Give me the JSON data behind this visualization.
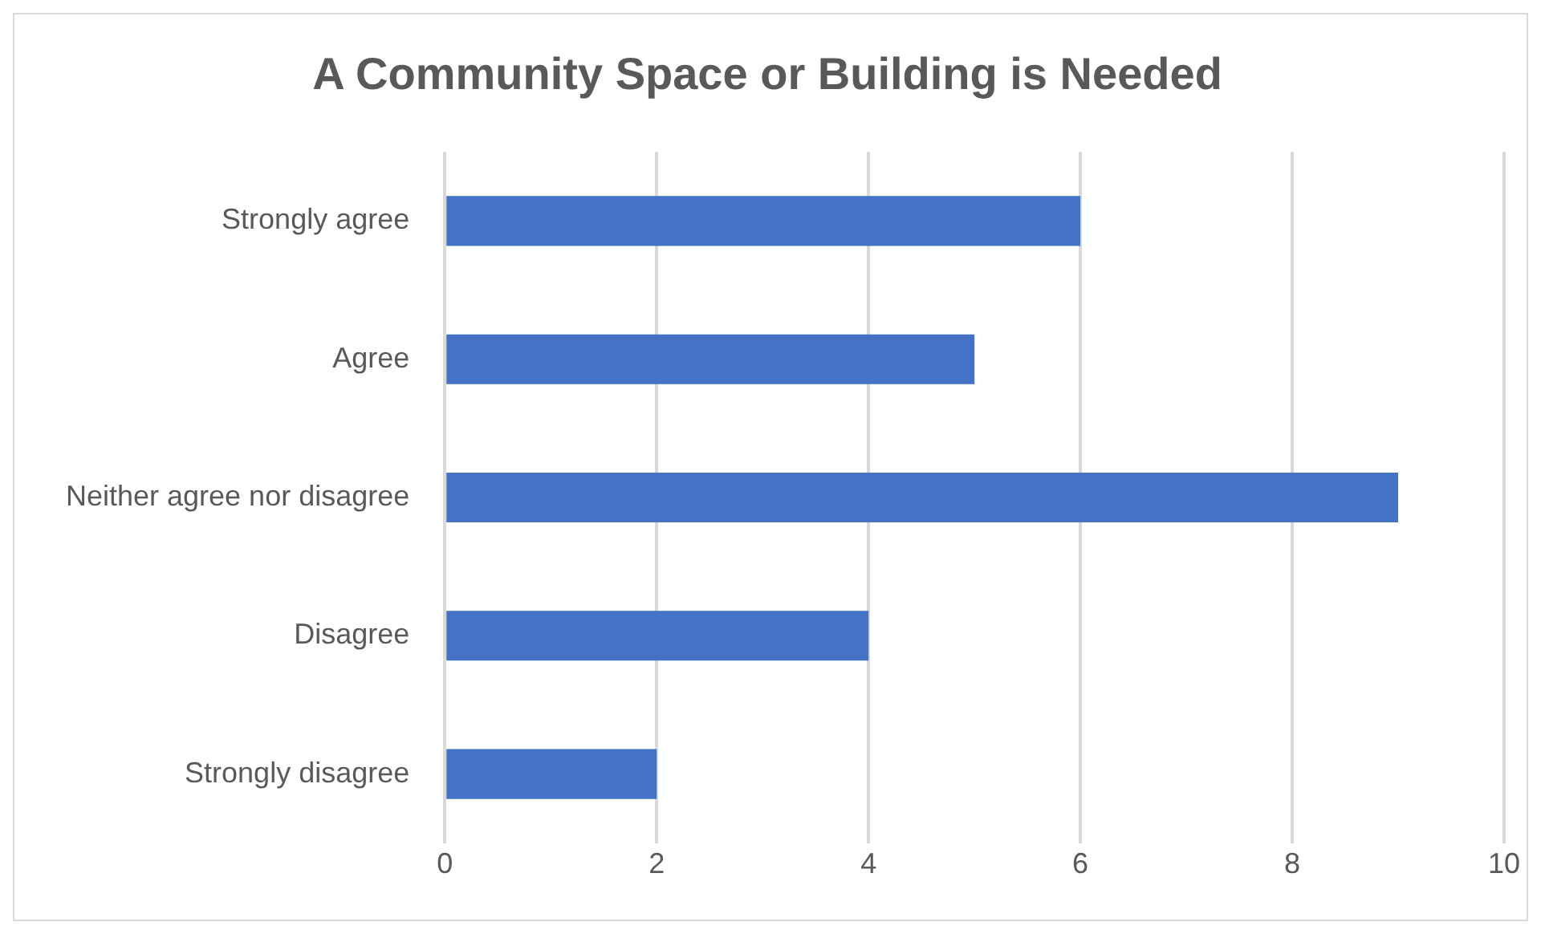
{
  "chart_data": {
    "type": "bar",
    "orientation": "horizontal",
    "title": "A Community Space or Building is Needed",
    "categories": [
      "Strongly agree",
      "Agree",
      "Neither agree nor disagree",
      "Disagree",
      "Strongly disagree"
    ],
    "values": [
      6,
      5,
      9,
      4,
      2
    ],
    "color": "#4472c4",
    "xlim": [
      0,
      10
    ],
    "xticks": [
      0,
      2,
      4,
      6,
      8,
      10
    ],
    "grid": "x",
    "legend": false
  }
}
